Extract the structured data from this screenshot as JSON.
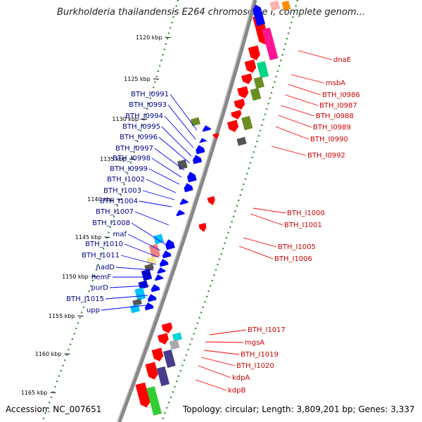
{
  "title": "Burkholderia thailandensis E264 chromosome I, complete genom...",
  "footer": {
    "accession": "Accession: NC_007651",
    "summary": "Topology: circular; Length: 3,809,201 bp; Genes: 3,337"
  },
  "colors": {
    "forward": "#ff0000",
    "reverse": "#0000ff",
    "backbone": "#888888",
    "tick_dots": "#2a8a2a"
  },
  "ticks": [
    "1120 kbp",
    "1125 kbp",
    "1130 kbp",
    "1135 kbp",
    "1140 kbp",
    "1145 kbp",
    "1150 kbp",
    "1155 kbp",
    "1160 kbp",
    "1165 kbp"
  ],
  "left_labels": [
    "BTH_I0991",
    "BTH_I0993",
    "BTH_I0994",
    "BTH_I0995",
    "BTH_I0996",
    "BTH_I0997",
    "BTH_I0998",
    "BTH_I0999",
    "BTH_I1002",
    "BTH_I1003",
    "BTH_I1004",
    "BTH_I1007",
    "BTH_I1008",
    "maf",
    "BTH_I1010",
    "BTH_I1011",
    "nadD",
    "hemF",
    "purD",
    "BTH_I1015",
    "upp"
  ],
  "right_labels": [
    "dnaE",
    "msbA",
    "BTH_I0986",
    "BTH_I0987",
    "BTH_I0988",
    "BTH_I0989",
    "BTH_I0990",
    "BTH_I0992",
    "BTH_I1000",
    "BTH_I1001",
    "BTH_I1005",
    "BTH_I1006",
    "BTH_I1017",
    "mgsA",
    "BTH_I1019",
    "BTH_I1020",
    "kdpA",
    "kdpB"
  ]
}
